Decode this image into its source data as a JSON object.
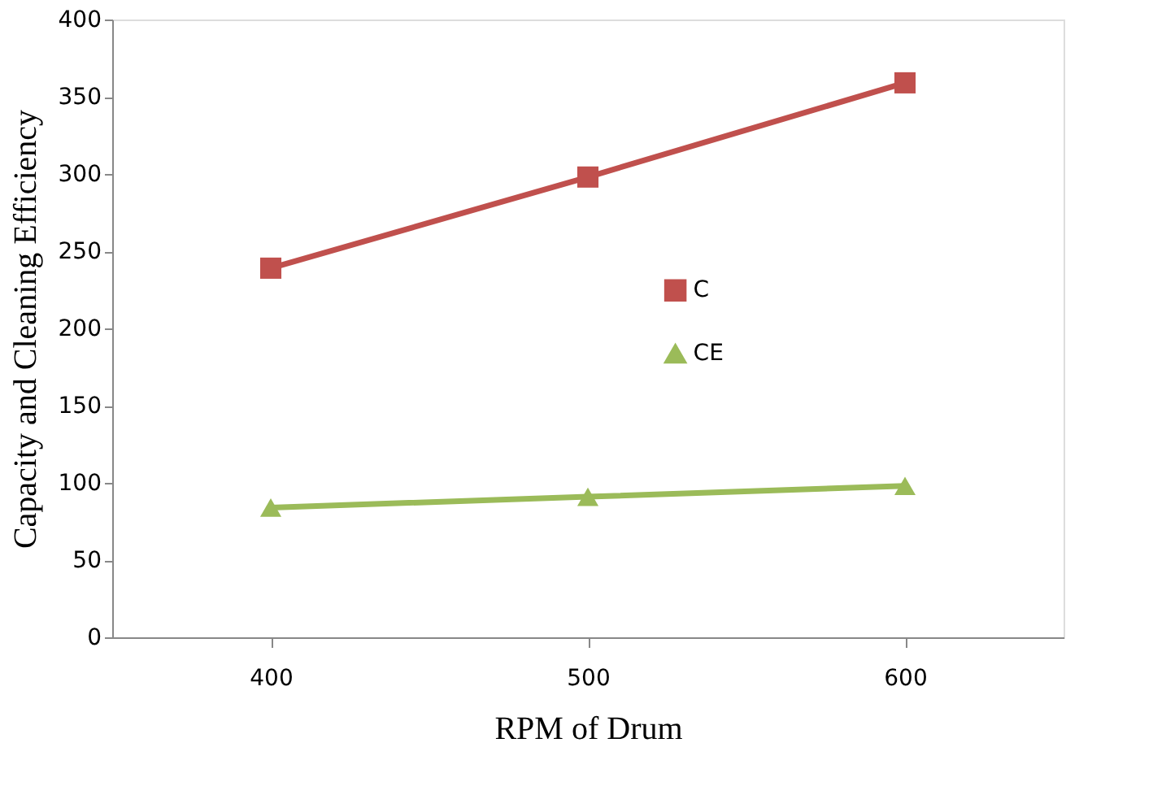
{
  "chart_data": {
    "type": "line",
    "xlabel": "RPM of Drum",
    "ylabel": "Capacity  and Cleaning  Efficiency",
    "categories": [
      "400",
      "500",
      "600"
    ],
    "series": [
      {
        "name": "C",
        "color": "#c0504d",
        "marker": "square",
        "values": [
          239,
          298,
          359
        ]
      },
      {
        "name": "CE",
        "color": "#9bbb59",
        "marker": "triangle",
        "values": [
          84,
          91,
          98
        ]
      }
    ],
    "ylim": [
      0,
      400
    ],
    "yticks": [
      0,
      50,
      100,
      150,
      200,
      250,
      300,
      350,
      400
    ],
    "grid": false,
    "legend": "right",
    "line_style": "solid"
  }
}
